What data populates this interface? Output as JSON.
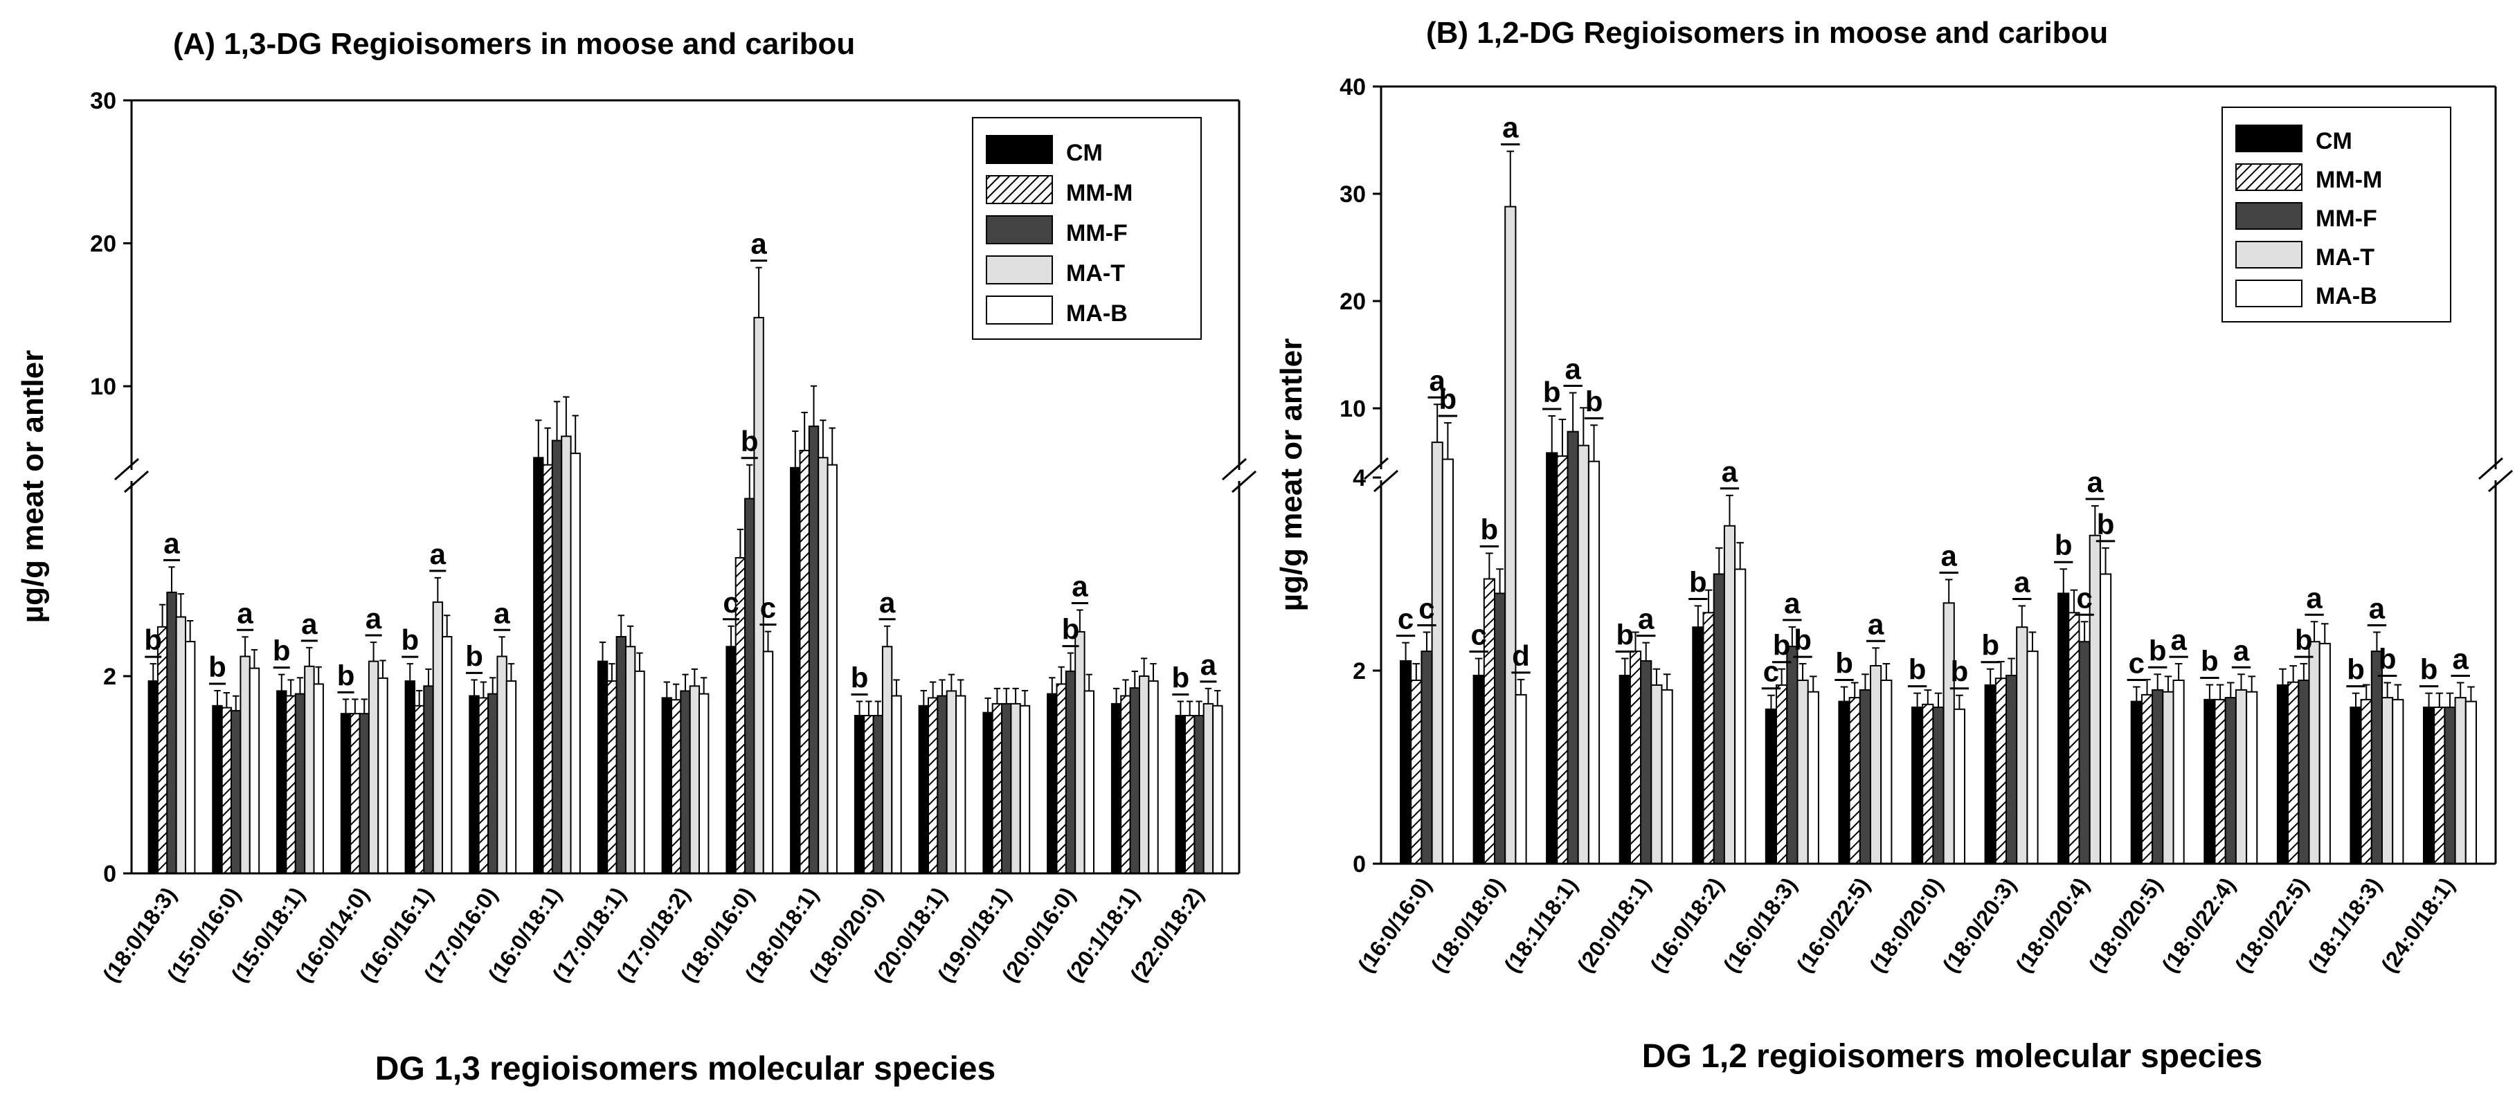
{
  "chart_data": [
    {
      "type": "bar",
      "title": "(A) 1,3-DG Regioisomers in moose  and caribou",
      "xlabel": "DG 1,3 regioisomers molecular species",
      "ylabel": "µg/g meat or antler",
      "y_scale": "broken",
      "y_ticks": [
        "0",
        "2",
        "10",
        "20",
        "30"
      ],
      "legend_position": "top-right",
      "categories": [
        "(18:0/18:3)",
        "(15:0/16:0)",
        "(15:0/18:1)",
        "(16:0/14:0)",
        "(16:0/16:1)",
        "(17:0/16:0)",
        "(16:0/18:1)",
        "(17:0/18:1)",
        "(17:0/18:2)",
        "(18:0/16:0)",
        "(18:0/18:1)",
        "(18:0/20:0)",
        "(20:0/18:1)",
        "(19:0/18:1)",
        "(20:0/16:0)",
        "(20:1/18:1)",
        "(22:0/18:2)"
      ],
      "series": [
        {
          "name": "CM",
          "color": "#000000",
          "pattern": "solid",
          "values": [
            1.95,
            1.7,
            1.85,
            1.62,
            1.95,
            1.8,
            5.0,
            2.15,
            1.78,
            2.3,
            4.3,
            1.6,
            1.7,
            1.63,
            1.82,
            1.72,
            1.6
          ]
        },
        {
          "name": "MM-M",
          "color": "#c8c8c8",
          "pattern": "hatch",
          "values": [
            2.5,
            1.68,
            1.8,
            1.62,
            1.7,
            1.78,
            4.5,
            1.95,
            1.76,
            3.2,
            5.5,
            1.6,
            1.78,
            1.72,
            1.92,
            1.8,
            1.6
          ]
        },
        {
          "name": "MM-F",
          "color": "#444444",
          "pattern": "solid",
          "values": [
            2.85,
            1.65,
            1.82,
            1.62,
            1.9,
            1.82,
            6.2,
            2.4,
            1.85,
            3.8,
            7.2,
            1.6,
            1.8,
            1.72,
            2.05,
            1.88,
            1.6
          ]
        },
        {
          "name": "MA-T",
          "color": "#e0e0e0",
          "pattern": "solid",
          "values": [
            2.6,
            2.2,
            2.1,
            2.15,
            2.75,
            2.2,
            6.5,
            2.3,
            1.9,
            14.8,
            5.0,
            2.3,
            1.85,
            1.72,
            2.45,
            2.0,
            1.72
          ]
        },
        {
          "name": "MA-B",
          "color": "#ffffff",
          "pattern": "solid",
          "values": [
            2.35,
            2.08,
            1.92,
            1.98,
            2.4,
            1.95,
            5.3,
            2.05,
            1.82,
            2.25,
            4.5,
            1.8,
            1.8,
            1.7,
            1.85,
            1.95,
            1.7
          ]
        }
      ],
      "annotations": [
        {
          "category": "(18:0/18:3)",
          "series": "CM",
          "text": "b"
        },
        {
          "category": "(18:0/18:3)",
          "series": "MM-F",
          "text": "a"
        },
        {
          "category": "(15:0/16:0)",
          "series": "CM",
          "text": "b"
        },
        {
          "category": "(15:0/16:0)",
          "series": "MA-T",
          "text": "a"
        },
        {
          "category": "(15:0/18:1)",
          "series": "CM",
          "text": "b"
        },
        {
          "category": "(15:0/18:1)",
          "series": "MA-T",
          "text": "a"
        },
        {
          "category": "(16:0/14:0)",
          "series": "CM",
          "text": "b"
        },
        {
          "category": "(16:0/14:0)",
          "series": "MA-T",
          "text": "a"
        },
        {
          "category": "(16:0/16:1)",
          "series": "CM",
          "text": "b"
        },
        {
          "category": "(16:0/16:1)",
          "series": "MA-T",
          "text": "a"
        },
        {
          "category": "(17:0/16:0)",
          "series": "CM",
          "text": "b"
        },
        {
          "category": "(17:0/16:0)",
          "series": "MA-T",
          "text": "a"
        },
        {
          "category": "(18:0/16:0)",
          "series": "CM",
          "text": "c"
        },
        {
          "category": "(18:0/16:0)",
          "series": "MM-F",
          "text": "b"
        },
        {
          "category": "(18:0/16:0)",
          "series": "MA-T",
          "text": "a"
        },
        {
          "category": "(18:0/16:0)",
          "series": "MA-B",
          "text": "c"
        },
        {
          "category": "(18:0/20:0)",
          "series": "CM",
          "text": "b"
        },
        {
          "category": "(18:0/20:0)",
          "series": "MA-T",
          "text": "a"
        },
        {
          "category": "(20:0/16:0)",
          "series": "MM-F",
          "text": "b"
        },
        {
          "category": "(20:0/16:0)",
          "series": "MA-T",
          "text": "a"
        },
        {
          "category": "(22:0/18:2)",
          "series": "CM",
          "text": "b"
        },
        {
          "category": "(22:0/18:2)",
          "series": "MA-T",
          "text": "a"
        }
      ]
    },
    {
      "type": "bar",
      "title": "(B) 1,2-DG Regioisomers in moose  and caribou",
      "xlabel": "DG 1,2 regioisomers molecular species",
      "ylabel": "µg/g meat or antler",
      "y_scale": "broken",
      "y_ticks": [
        "0",
        "2",
        "4",
        "10",
        "20",
        "30",
        "40"
      ],
      "legend_position": "top-right",
      "categories": [
        "(16:0/16:0)",
        "(18:0/18:0)",
        "(18:1/18:1)",
        "(20:0/18:1)",
        "(16:0/18:2)",
        "(16:0/18:3)",
        "(16:0/22:5)",
        "(18:0/20:0)",
        "(18:0/20:3)",
        "(18:0/20:4)",
        "(18:0/20:5)",
        "(18:0/22:4)",
        "(18:0/22:5)",
        "(18:1/18:3)",
        "(24:0/18:1)"
      ],
      "series": [
        {
          "name": "CM",
          "color": "#000000",
          "pattern": "solid",
          "values": [
            2.1,
            1.95,
            5.8,
            1.95,
            2.45,
            1.6,
            1.68,
            1.62,
            1.85,
            2.8,
            1.68,
            1.7,
            1.85,
            1.62,
            1.62
          ]
        },
        {
          "name": "MM-M",
          "color": "#c8c8c8",
          "pattern": "hatch",
          "values": [
            1.9,
            2.95,
            5.5,
            2.2,
            2.6,
            1.85,
            1.72,
            1.65,
            1.92,
            2.6,
            1.75,
            1.7,
            1.88,
            1.7,
            1.62
          ]
        },
        {
          "name": "MM-F",
          "color": "#444444",
          "pattern": "solid",
          "values": [
            2.2,
            2.8,
            7.8,
            2.1,
            3.0,
            2.25,
            1.8,
            1.62,
            1.95,
            2.3,
            1.8,
            1.72,
            1.9,
            2.2,
            1.62
          ]
        },
        {
          "name": "MA-T",
          "color": "#e0e0e0",
          "pattern": "solid",
          "values": [
            6.8,
            28.8,
            6.5,
            1.85,
            3.5,
            1.9,
            2.05,
            2.7,
            2.45,
            3.4,
            1.78,
            1.8,
            2.3,
            1.72,
            1.72
          ]
        },
        {
          "name": "MA-B",
          "color": "#ffffff",
          "pattern": "solid",
          "values": [
            5.2,
            1.75,
            5.0,
            1.8,
            3.05,
            1.78,
            1.9,
            1.6,
            2.2,
            3.0,
            1.9,
            1.78,
            2.28,
            1.7,
            1.68
          ]
        }
      ],
      "annotations": [
        {
          "category": "(16:0/16:0)",
          "series": "CM",
          "text": "c"
        },
        {
          "category": "(16:0/16:0)",
          "series": "MM-F",
          "text": "c"
        },
        {
          "category": "(16:0/16:0)",
          "series": "MA-T",
          "text": "a"
        },
        {
          "category": "(16:0/16:0)",
          "series": "MA-B",
          "text": "b"
        },
        {
          "category": "(18:0/18:0)",
          "series": "CM",
          "text": "c"
        },
        {
          "category": "(18:0/18:0)",
          "series": "MM-M",
          "text": "b"
        },
        {
          "category": "(18:0/18:0)",
          "series": "MA-T",
          "text": "a"
        },
        {
          "category": "(18:0/18:0)",
          "series": "MA-B",
          "text": "d"
        },
        {
          "category": "(18:1/18:1)",
          "series": "CM",
          "text": "b"
        },
        {
          "category": "(18:1/18:1)",
          "series": "MM-F",
          "text": "a"
        },
        {
          "category": "(18:1/18:1)",
          "series": "MA-B",
          "text": "b"
        },
        {
          "category": "(20:0/18:1)",
          "series": "CM",
          "text": "b"
        },
        {
          "category": "(20:0/18:1)",
          "series": "MM-F",
          "text": "a"
        },
        {
          "category": "(16:0/18:2)",
          "series": "CM",
          "text": "b"
        },
        {
          "category": "(16:0/18:2)",
          "series": "MA-T",
          "text": "a"
        },
        {
          "category": "(16:0/18:3)",
          "series": "CM",
          "text": "c"
        },
        {
          "category": "(16:0/18:3)",
          "series": "MM-M",
          "text": "b"
        },
        {
          "category": "(16:0/18:3)",
          "series": "MM-F",
          "text": "a"
        },
        {
          "category": "(16:0/18:3)",
          "series": "MA-T",
          "text": "b"
        },
        {
          "category": "(16:0/22:5)",
          "series": "CM",
          "text": "b"
        },
        {
          "category": "(16:0/22:5)",
          "series": "MA-T",
          "text": "a"
        },
        {
          "category": "(18:0/20:0)",
          "series": "CM",
          "text": "b"
        },
        {
          "category": "(18:0/20:0)",
          "series": "MA-T",
          "text": "a"
        },
        {
          "category": "(18:0/20:0)",
          "series": "MA-B",
          "text": "b"
        },
        {
          "category": "(18:0/20:3)",
          "series": "CM",
          "text": "b"
        },
        {
          "category": "(18:0/20:3)",
          "series": "MA-T",
          "text": "a"
        },
        {
          "category": "(18:0/20:4)",
          "series": "CM",
          "text": "b"
        },
        {
          "category": "(18:0/20:4)",
          "series": "MM-F",
          "text": "c"
        },
        {
          "category": "(18:0/20:4)",
          "series": "MA-T",
          "text": "a"
        },
        {
          "category": "(18:0/20:4)",
          "series": "MA-B",
          "text": "b"
        },
        {
          "category": "(18:0/20:5)",
          "series": "CM",
          "text": "c"
        },
        {
          "category": "(18:0/20:5)",
          "series": "MM-F",
          "text": "b"
        },
        {
          "category": "(18:0/20:5)",
          "series": "MA-B",
          "text": "a"
        },
        {
          "category": "(18:0/22:4)",
          "series": "CM",
          "text": "b"
        },
        {
          "category": "(18:0/22:4)",
          "series": "MA-T",
          "text": "a"
        },
        {
          "category": "(18:0/22:5)",
          "series": "MM-F",
          "text": "b"
        },
        {
          "category": "(18:0/22:5)",
          "series": "MA-T",
          "text": "a"
        },
        {
          "category": "(18:1/18:3)",
          "series": "CM",
          "text": "b"
        },
        {
          "category": "(18:1/18:3)",
          "series": "MM-F",
          "text": "a"
        },
        {
          "category": "(18:1/18:3)",
          "series": "MA-T",
          "text": "b"
        },
        {
          "category": "(24:0/18:1)",
          "series": "CM",
          "text": "b"
        },
        {
          "category": "(24:0/18:1)",
          "series": "MA-T",
          "text": "a"
        }
      ]
    }
  ]
}
